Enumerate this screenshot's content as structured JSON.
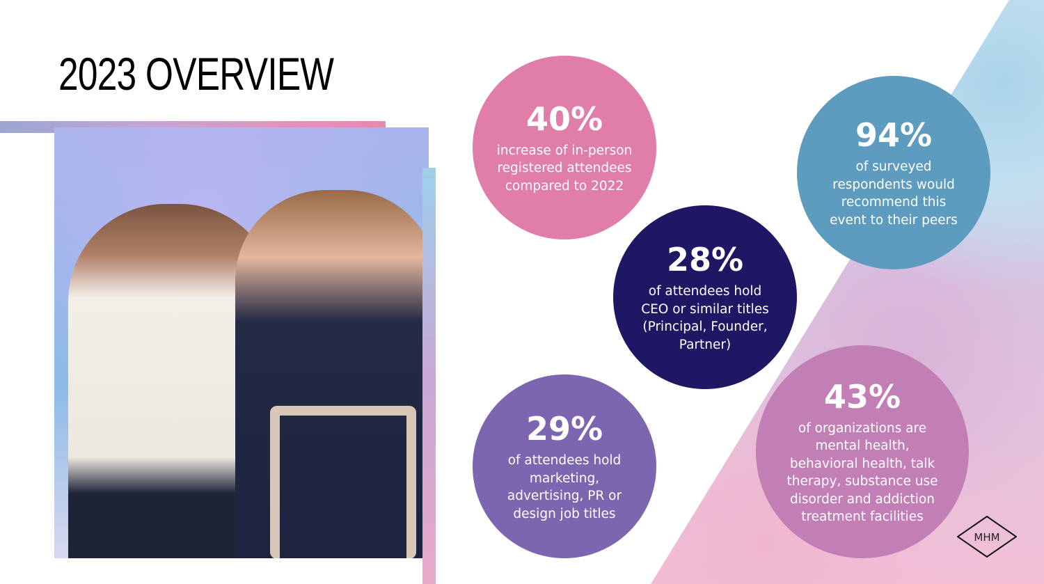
{
  "title": "2023 OVERVIEW",
  "stats": [
    {
      "value": "40%",
      "text": "increase of in-person registered attendees compared to 2022",
      "color": "#e07ea9"
    },
    {
      "value": "94%",
      "text": "of surveyed respondents would recommend this event to their peers",
      "color": "#5d9bbf"
    },
    {
      "value": "28%",
      "text": "of attendees hold CEO or similar titles (Principal, Founder, Partner)",
      "color": "#1e1763"
    },
    {
      "value": "29%",
      "text": "of attendees hold marketing, advertising, PR or design job titles",
      "color": "#7d66b0"
    },
    {
      "value": "43%",
      "text": "of organizations are mental health, behavioral health, talk therapy, substance use disorder and addiction treatment facilities",
      "color": "#c27fb5"
    }
  ],
  "logo": "MHM"
}
